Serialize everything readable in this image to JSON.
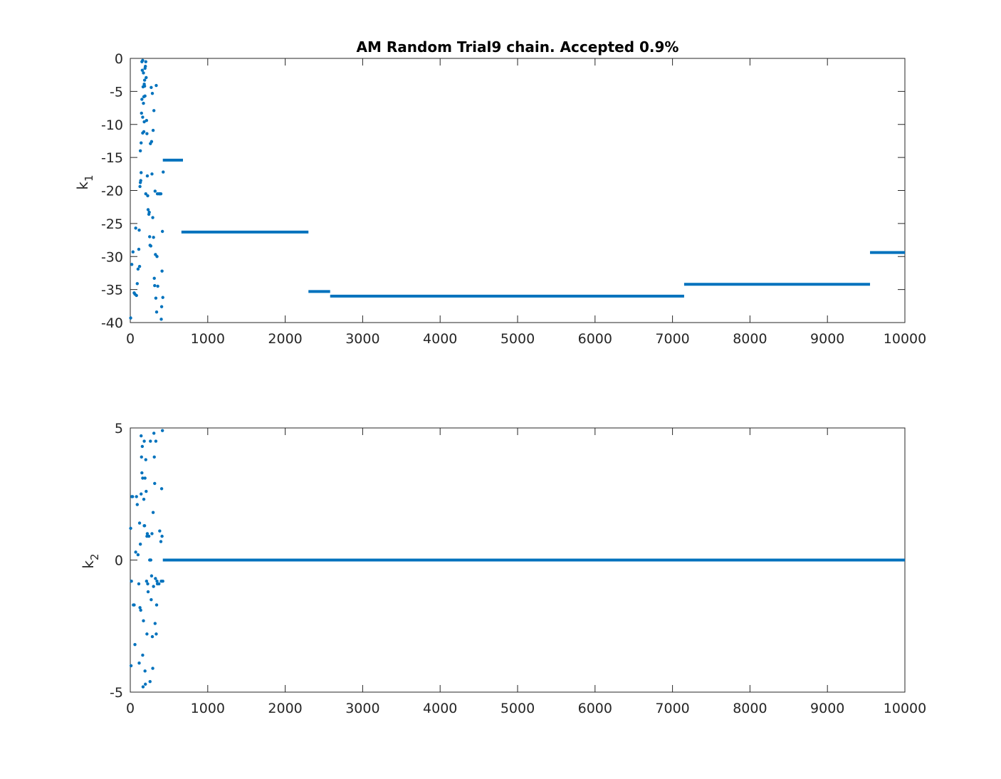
{
  "colors": {
    "series": "#0072bd",
    "axis": "#262626",
    "background": "#ffffff"
  },
  "chart_data": [
    {
      "type": "scatter",
      "title": "AM Random Trial9 chain. Accepted 0.9%",
      "ylabel": "k",
      "ylabel_subscript": "1",
      "xlim": [
        0,
        10000
      ],
      "ylim": [
        -40,
        0
      ],
      "xticks": [
        "0",
        "1000",
        "2000",
        "3000",
        "4000",
        "5000",
        "6000",
        "7000",
        "8000",
        "9000",
        "10000"
      ],
      "yticks": [
        "0",
        "-5",
        "-10",
        "-15",
        "-20",
        "-25",
        "-30",
        "-35",
        "-40"
      ],
      "points": [
        [
          5,
          -39.3
        ],
        [
          20,
          -31.2
        ],
        [
          35,
          -29.3
        ],
        [
          50,
          -35.5
        ],
        [
          60,
          -35.7
        ],
        [
          70,
          -25.7
        ],
        [
          80,
          -35.9
        ],
        [
          90,
          -34.1
        ],
        [
          100,
          -31.9
        ],
        [
          110,
          -28.9
        ],
        [
          115,
          -26.0
        ],
        [
          120,
          -31.5
        ],
        [
          125,
          -19.4
        ],
        [
          130,
          -18.8
        ],
        [
          135,
          -18.5
        ],
        [
          140,
          -17.3
        ],
        [
          145,
          -8.3
        ],
        [
          150,
          -6.2
        ],
        [
          155,
          -1.8
        ],
        [
          160,
          -0.3
        ],
        [
          165,
          -4.3
        ],
        [
          170,
          -2.2
        ],
        [
          175,
          -11.1
        ],
        [
          180,
          -9.6
        ],
        [
          185,
          -3.3
        ],
        [
          190,
          -5.7
        ],
        [
          195,
          -1.2
        ],
        [
          200,
          -0.5
        ],
        [
          205,
          -2.9
        ],
        [
          210,
          -9.4
        ],
        [
          215,
          -11.4
        ],
        [
          220,
          -17.8
        ],
        [
          225,
          -20.8
        ],
        [
          230,
          -22.9
        ],
        [
          240,
          -23.6
        ],
        [
          250,
          -27.0
        ],
        [
          255,
          -28.3
        ],
        [
          260,
          -12.9
        ],
        [
          270,
          -4.4
        ],
        [
          275,
          -12.6
        ],
        [
          280,
          -17.5
        ],
        [
          285,
          -5.3
        ],
        [
          290,
          -24.1
        ],
        [
          295,
          -10.9
        ],
        [
          300,
          -27.1
        ],
        [
          305,
          -7.9
        ],
        [
          310,
          -33.3
        ],
        [
          315,
          -34.4
        ],
        [
          320,
          -20.1
        ],
        [
          325,
          -29.7
        ],
        [
          330,
          -36.3
        ],
        [
          335,
          -4.1
        ],
        [
          340,
          -38.4
        ],
        [
          345,
          -30.0
        ],
        [
          350,
          -20.5
        ],
        [
          355,
          -34.5
        ],
        [
          370,
          -20.5
        ],
        [
          380,
          -20.5
        ],
        [
          395,
          -20.5
        ],
        [
          400,
          -39.5
        ],
        [
          405,
          -37.6
        ],
        [
          410,
          -32.2
        ],
        [
          415,
          -26.2
        ],
        [
          420,
          -36.2
        ],
        [
          425,
          -17.2
        ],
        [
          130,
          -14.0
        ],
        [
          140,
          -12.8
        ],
        [
          160,
          -8.9
        ],
        [
          170,
          -6.8
        ],
        [
          180,
          -3.9
        ],
        [
          190,
          -1.5
        ],
        [
          150,
          -0.5
        ],
        [
          265,
          -28.4
        ],
        [
          245,
          -23.3
        ],
        [
          200,
          -20.5
        ],
        [
          160,
          -11.3
        ],
        [
          175,
          -5.8
        ],
        [
          185,
          -4.2
        ]
      ],
      "segments": [
        {
          "x_start": 420,
          "x_end": 680,
          "y": -15.4
        },
        {
          "x_start": 660,
          "x_end": 2300,
          "y": -26.3
        },
        {
          "x_start": 2300,
          "x_end": 2580,
          "y": -35.3
        },
        {
          "x_start": 2580,
          "x_end": 7150,
          "y": -36.0
        },
        {
          "x_start": 7150,
          "x_end": 9550,
          "y": -34.2
        },
        {
          "x_start": 9550,
          "x_end": 10000,
          "y": -29.4
        }
      ]
    },
    {
      "type": "scatter",
      "title": "",
      "ylabel": "k",
      "ylabel_subscript": "2",
      "xlim": [
        0,
        10000
      ],
      "ylim": [
        -5,
        5
      ],
      "xticks": [
        "0",
        "1000",
        "2000",
        "3000",
        "4000",
        "5000",
        "6000",
        "7000",
        "8000",
        "9000",
        "10000"
      ],
      "yticks": [
        "5",
        "0",
        "-5"
      ],
      "points": [
        [
          5,
          1.2
        ],
        [
          10,
          -4.0
        ],
        [
          15,
          -0.8
        ],
        [
          20,
          2.4
        ],
        [
          30,
          2.4
        ],
        [
          40,
          -1.7
        ],
        [
          50,
          -1.7
        ],
        [
          60,
          -3.2
        ],
        [
          70,
          0.3
        ],
        [
          80,
          2.4
        ],
        [
          90,
          2.1
        ],
        [
          100,
          0.2
        ],
        [
          110,
          -0.9
        ],
        [
          115,
          -3.9
        ],
        [
          120,
          1.4
        ],
        [
          125,
          -1.8
        ],
        [
          130,
          0.6
        ],
        [
          135,
          -1.9
        ],
        [
          140,
          4.7
        ],
        [
          145,
          3.9
        ],
        [
          150,
          3.3
        ],
        [
          155,
          4.3
        ],
        [
          160,
          3.1
        ],
        [
          165,
          -4.8
        ],
        [
          170,
          -2.3
        ],
        [
          175,
          2.3
        ],
        [
          180,
          4.5
        ],
        [
          185,
          1.3
        ],
        [
          190,
          3.1
        ],
        [
          195,
          -4.7
        ],
        [
          200,
          3.8
        ],
        [
          205,
          2.6
        ],
        [
          210,
          -0.8
        ],
        [
          215,
          -2.8
        ],
        [
          220,
          1.0
        ],
        [
          225,
          -0.9
        ],
        [
          230,
          -1.2
        ],
        [
          240,
          0.9
        ],
        [
          250,
          0.0
        ],
        [
          255,
          -4.6
        ],
        [
          260,
          4.5
        ],
        [
          270,
          -1.5
        ],
        [
          275,
          -0.6
        ],
        [
          280,
          1.0
        ],
        [
          285,
          -2.9
        ],
        [
          290,
          -4.1
        ],
        [
          295,
          1.8
        ],
        [
          300,
          -1.0
        ],
        [
          305,
          4.8
        ],
        [
          310,
          3.9
        ],
        [
          315,
          2.9
        ],
        [
          320,
          -2.4
        ],
        [
          325,
          -0.7
        ],
        [
          330,
          4.5
        ],
        [
          335,
          -2.8
        ],
        [
          340,
          -1.7
        ],
        [
          345,
          -0.8
        ],
        [
          350,
          -0.9
        ],
        [
          370,
          -0.9
        ],
        [
          380,
          1.1
        ],
        [
          395,
          0.7
        ],
        [
          400,
          -0.8
        ],
        [
          405,
          2.7
        ],
        [
          410,
          0.9
        ],
        [
          415,
          4.9
        ],
        [
          420,
          -0.8
        ],
        [
          160,
          -3.6
        ],
        [
          190,
          -4.2
        ],
        [
          180,
          1.3
        ],
        [
          265,
          0.0
        ],
        [
          215,
          0.9
        ],
        [
          140,
          2.5
        ]
      ],
      "segments": [
        {
          "x_start": 420,
          "x_end": 10000,
          "y": 0.0
        }
      ]
    }
  ]
}
